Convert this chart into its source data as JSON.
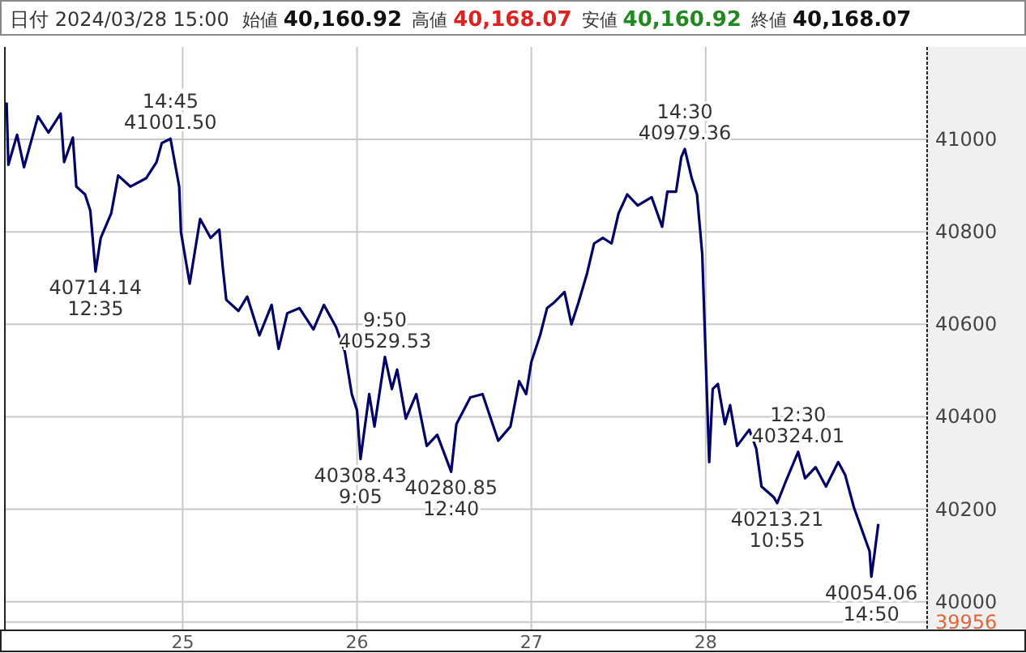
{
  "chart_data": {
    "type": "line",
    "title": "日付 2024/03/28 15:00",
    "annotations": [
      "始値 40,160.92",
      "高値 40,168.07",
      "安値 40,160.92",
      "終値 40,168.07",
      {
        "text": "14:45\n41001.50",
        "x": 24.93,
        "y": 41001.5
      },
      {
        "text": "40714.14\n12:35",
        "x": 24.5,
        "y": 40714.14
      },
      {
        "text": "9:50\n40529.53",
        "x": 26.16,
        "y": 40529.53
      },
      {
        "text": "40308.43\n9:05",
        "x": 26.02,
        "y": 40308.43
      },
      {
        "text": "40280.85\n12:40",
        "x": 26.54,
        "y": 40280.85
      },
      {
        "text": "14:30\n40979.36",
        "x": 27.88,
        "y": 40979.36
      },
      {
        "text": "12:30\n40324.01",
        "x": 28.53,
        "y": 40324.01
      },
      {
        "text": "40213.21\n10:55",
        "x": 28.41,
        "y": 40213.21
      },
      {
        "text": "40054.06\n14:50",
        "x": 28.95,
        "y": 40054.06
      }
    ],
    "x": [
      23.99,
      24.0,
      24.05,
      24.09,
      24.17,
      24.23,
      24.3,
      24.32,
      24.37,
      24.39,
      24.44,
      24.47,
      24.5,
      24.53,
      24.59,
      24.63,
      24.7,
      24.79,
      24.85,
      24.88,
      24.93,
      24.98,
      24.99,
      25.04,
      25.1,
      25.16,
      25.21,
      25.23,
      25.25,
      25.32,
      25.37,
      25.44,
      25.51,
      25.55,
      25.6,
      25.67,
      25.75,
      25.81,
      25.88,
      25.93,
      25.97,
      26.0,
      26.02,
      26.07,
      26.1,
      26.16,
      26.2,
      26.23,
      26.28,
      26.34,
      26.4,
      26.46,
      26.54,
      26.57,
      26.65,
      26.72,
      26.81,
      26.88,
      26.93,
      26.97,
      27.0,
      27.05,
      27.09,
      27.13,
      27.19,
      27.23,
      27.27,
      27.32,
      27.36,
      27.41,
      27.46,
      27.5,
      27.55,
      27.61,
      27.69,
      27.75,
      27.78,
      27.83,
      27.86,
      27.88,
      27.92,
      27.95,
      27.98,
      28.02,
      28.04,
      28.07,
      28.11,
      28.14,
      28.18,
      28.25,
      28.29,
      28.32,
      28.39,
      28.41,
      28.46,
      28.53,
      28.57,
      28.63,
      28.69,
      28.76,
      28.8,
      28.85,
      28.9,
      28.94,
      28.95,
      28.97,
      28.99
    ],
    "series": [
      {
        "color": "#000066",
        "values": [
          41080,
          40945,
          41010,
          40940,
          41050,
          41015,
          41056,
          40951,
          41004,
          40898,
          40881,
          40846,
          40714.14,
          40787,
          40840,
          40922,
          40898,
          40916,
          40951,
          40992,
          41001.5,
          40898,
          40800,
          40688,
          40828,
          40787,
          40805,
          40723,
          40653,
          40629,
          40660,
          40576,
          40642,
          40547,
          40624,
          40635,
          40589,
          40642,
          40594,
          40541,
          40449,
          40414,
          40308.43,
          40449,
          40379,
          40529.53,
          40460,
          40502,
          40396,
          40449,
          40337,
          40361,
          40280.85,
          40384,
          40442,
          40449,
          40348,
          40379,
          40477,
          40449,
          40519,
          40576,
          40635,
          40647,
          40670,
          40600,
          40647,
          40711,
          40775,
          40787,
          40775,
          40840,
          40881,
          40857,
          40875,
          40811,
          40887,
          40887,
          40962,
          40979.36,
          40916,
          40881,
          40752,
          40302,
          40460,
          40471,
          40384,
          40425,
          40337,
          40372,
          40331,
          40249,
          40226,
          40213.21,
          40261,
          40324.01,
          40267,
          40291,
          40249,
          40302,
          40274,
          40204,
          40151,
          40109,
          40054.06,
          40109,
          40168.07
        ]
      }
    ],
    "xlim": [
      23.98,
      29.27
    ],
    "xticks": [
      {
        "value": 25,
        "label": "25"
      },
      {
        "value": 26,
        "label": "26"
      },
      {
        "value": 27,
        "label": "27"
      },
      {
        "value": 28,
        "label": "28"
      }
    ],
    "ylim": [
      39938,
      41200
    ],
    "yticks": [
      39956,
      40000,
      40200,
      40400,
      40600,
      40800,
      41000
    ],
    "grid": true
  }
}
